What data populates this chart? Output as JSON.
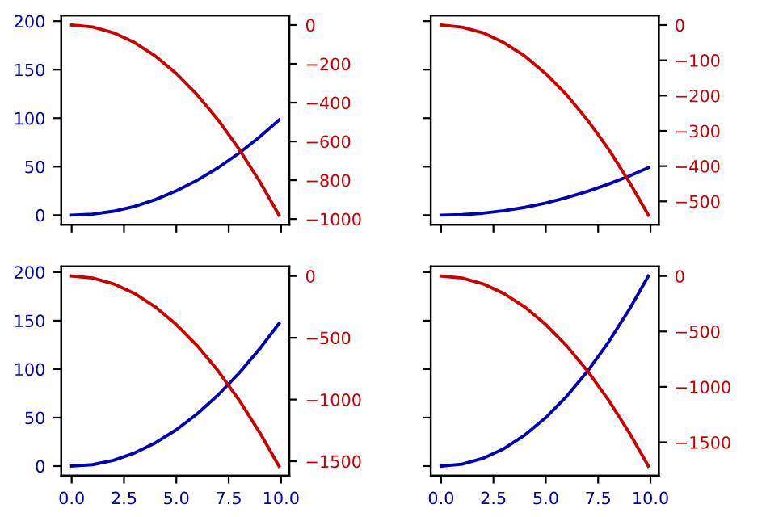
{
  "chart_data": [
    {
      "type": "line",
      "x": [
        0,
        1,
        2,
        3,
        4,
        5,
        6,
        7,
        8,
        9,
        9.9
      ],
      "xlim": [
        -0.495,
        10.395
      ],
      "xticks": [
        {
          "value": 0,
          "label": null
        },
        {
          "value": 2.5,
          "label": null
        },
        {
          "value": 5,
          "label": null
        },
        {
          "value": 7.5,
          "label": null
        },
        {
          "value": 10,
          "label": null
        }
      ],
      "ylim": [
        -9.8,
        205.8
      ],
      "yticks": [
        0,
        50,
        100,
        150,
        200
      ],
      "y2lim": [
        -1029,
        49
      ],
      "y2ticks": [
        {
          "value": 0,
          "label": "0"
        },
        {
          "value": -200,
          "label": "−200"
        },
        {
          "value": -400,
          "label": "−400"
        },
        {
          "value": -600,
          "label": "−600"
        },
        {
          "value": -800,
          "label": "−800"
        },
        {
          "value": -1000,
          "label": "−1000"
        }
      ],
      "tick_labels": "y",
      "series": [
        {
          "color": "#0000bb",
          "values": [
            0,
            1,
            4,
            9,
            16,
            25,
            36,
            49,
            64,
            81,
            98
          ]
        },
        {
          "color": "#cc0000",
          "axis": "y2",
          "values": [
            0,
            -10,
            -40,
            -90,
            -160,
            -250,
            -360,
            -490,
            -640,
            -810,
            -980
          ]
        }
      ]
    },
    {
      "type": "line",
      "x": [
        0,
        1,
        2,
        3,
        4,
        5,
        6,
        7,
        8,
        9,
        9.9
      ],
      "xlim": [
        -0.495,
        10.395
      ],
      "xticks": [
        {
          "value": 0,
          "label": null
        },
        {
          "value": 2.5,
          "label": null
        },
        {
          "value": 5,
          "label": null
        },
        {
          "value": 7.5,
          "label": null
        },
        {
          "value": 10,
          "label": null
        }
      ],
      "ylim": [
        -9.8,
        205.8
      ],
      "yticks": [
        {
          "value": 0,
          "label": null
        },
        {
          "value": 50,
          "label": null
        },
        {
          "value": 100,
          "label": null
        },
        {
          "value": 150,
          "label": null
        },
        {
          "value": 200,
          "label": null
        }
      ],
      "y2lim": [
        -566,
        27
      ],
      "y2ticks": [
        {
          "value": 0,
          "label": "0"
        },
        {
          "value": -100,
          "label": "−100"
        },
        {
          "value": -200,
          "label": "−200"
        },
        {
          "value": -300,
          "label": "−300"
        },
        {
          "value": -400,
          "label": "−400"
        },
        {
          "value": -500,
          "label": "−500"
        }
      ],
      "tick_labels": false,
      "series": [
        {
          "color": "#0000bb",
          "values": [
            0,
            0.5,
            2,
            4.5,
            8,
            12.5,
            18,
            24.5,
            32,
            40.5,
            49
          ]
        },
        {
          "color": "#cc0000",
          "axis": "y2",
          "values": [
            0,
            -6,
            -22,
            -50,
            -88,
            -138,
            -198,
            -270,
            -352,
            -446,
            -539
          ]
        }
      ]
    },
    {
      "type": "line",
      "x": [
        0,
        1,
        2,
        3,
        4,
        5,
        6,
        7,
        8,
        9,
        9.9
      ],
      "xlim": [
        -0.495,
        10.395
      ],
      "xticks": [
        {
          "value": 0,
          "label": "0.0"
        },
        {
          "value": 2.5,
          "label": "2.5"
        },
        {
          "value": 5,
          "label": "5.0"
        },
        {
          "value": 7.5,
          "label": "7.5"
        },
        {
          "value": 10,
          "label": "10.0"
        }
      ],
      "ylim": [
        -9.8,
        205.8
      ],
      "yticks": [
        0,
        50,
        100,
        150,
        200
      ],
      "y2lim": [
        -1616,
        77
      ],
      "y2ticks": [
        {
          "value": 0,
          "label": "0"
        },
        {
          "value": -500,
          "label": "−500"
        },
        {
          "value": -1000,
          "label": "−1000"
        },
        {
          "value": -1500,
          "label": "−1500"
        }
      ],
      "series": [
        {
          "color": "#0000bb",
          "values": [
            0,
            1.5,
            6,
            13.5,
            24,
            37.5,
            54,
            73.5,
            96,
            121.5,
            147
          ]
        },
        {
          "color": "#cc0000",
          "axis": "y2",
          "values": [
            0,
            -16,
            -63,
            -141,
            -251,
            -393,
            -565,
            -769,
            -1005,
            -1272,
            -1539
          ]
        }
      ]
    },
    {
      "type": "line",
      "x": [
        0,
        1,
        2,
        3,
        4,
        5,
        6,
        7,
        8,
        9,
        9.9
      ],
      "xlim": [
        -0.495,
        10.395
      ],
      "xticks": [
        {
          "value": 0,
          "label": "0.0"
        },
        {
          "value": 2.5,
          "label": "2.5"
        },
        {
          "value": 5,
          "label": "5.0"
        },
        {
          "value": 7.5,
          "label": "7.5"
        },
        {
          "value": 10,
          "label": "10.0"
        }
      ],
      "ylim": [
        -9.8,
        205.8
      ],
      "yticks": [
        {
          "value": 0,
          "label": null
        },
        {
          "value": 50,
          "label": null
        },
        {
          "value": 100,
          "label": null
        },
        {
          "value": 150,
          "label": null
        },
        {
          "value": 200,
          "label": null
        }
      ],
      "y2lim": [
        -1801,
        86
      ],
      "y2ticks": [
        {
          "value": 0,
          "label": "0"
        },
        {
          "value": -500,
          "label": "−500"
        },
        {
          "value": -1000,
          "label": "−1000"
        },
        {
          "value": -1500,
          "label": "−1500"
        }
      ],
      "tick_labels": "x",
      "series": [
        {
          "color": "#0000bb",
          "values": [
            0,
            2,
            8,
            18,
            32,
            50,
            72,
            98,
            128,
            162,
            196
          ]
        },
        {
          "color": "#cc0000",
          "axis": "y2",
          "values": [
            0,
            -18,
            -70,
            -158,
            -280,
            -438,
            -630,
            -858,
            -1120,
            -1418,
            -1715
          ]
        }
      ]
    }
  ]
}
